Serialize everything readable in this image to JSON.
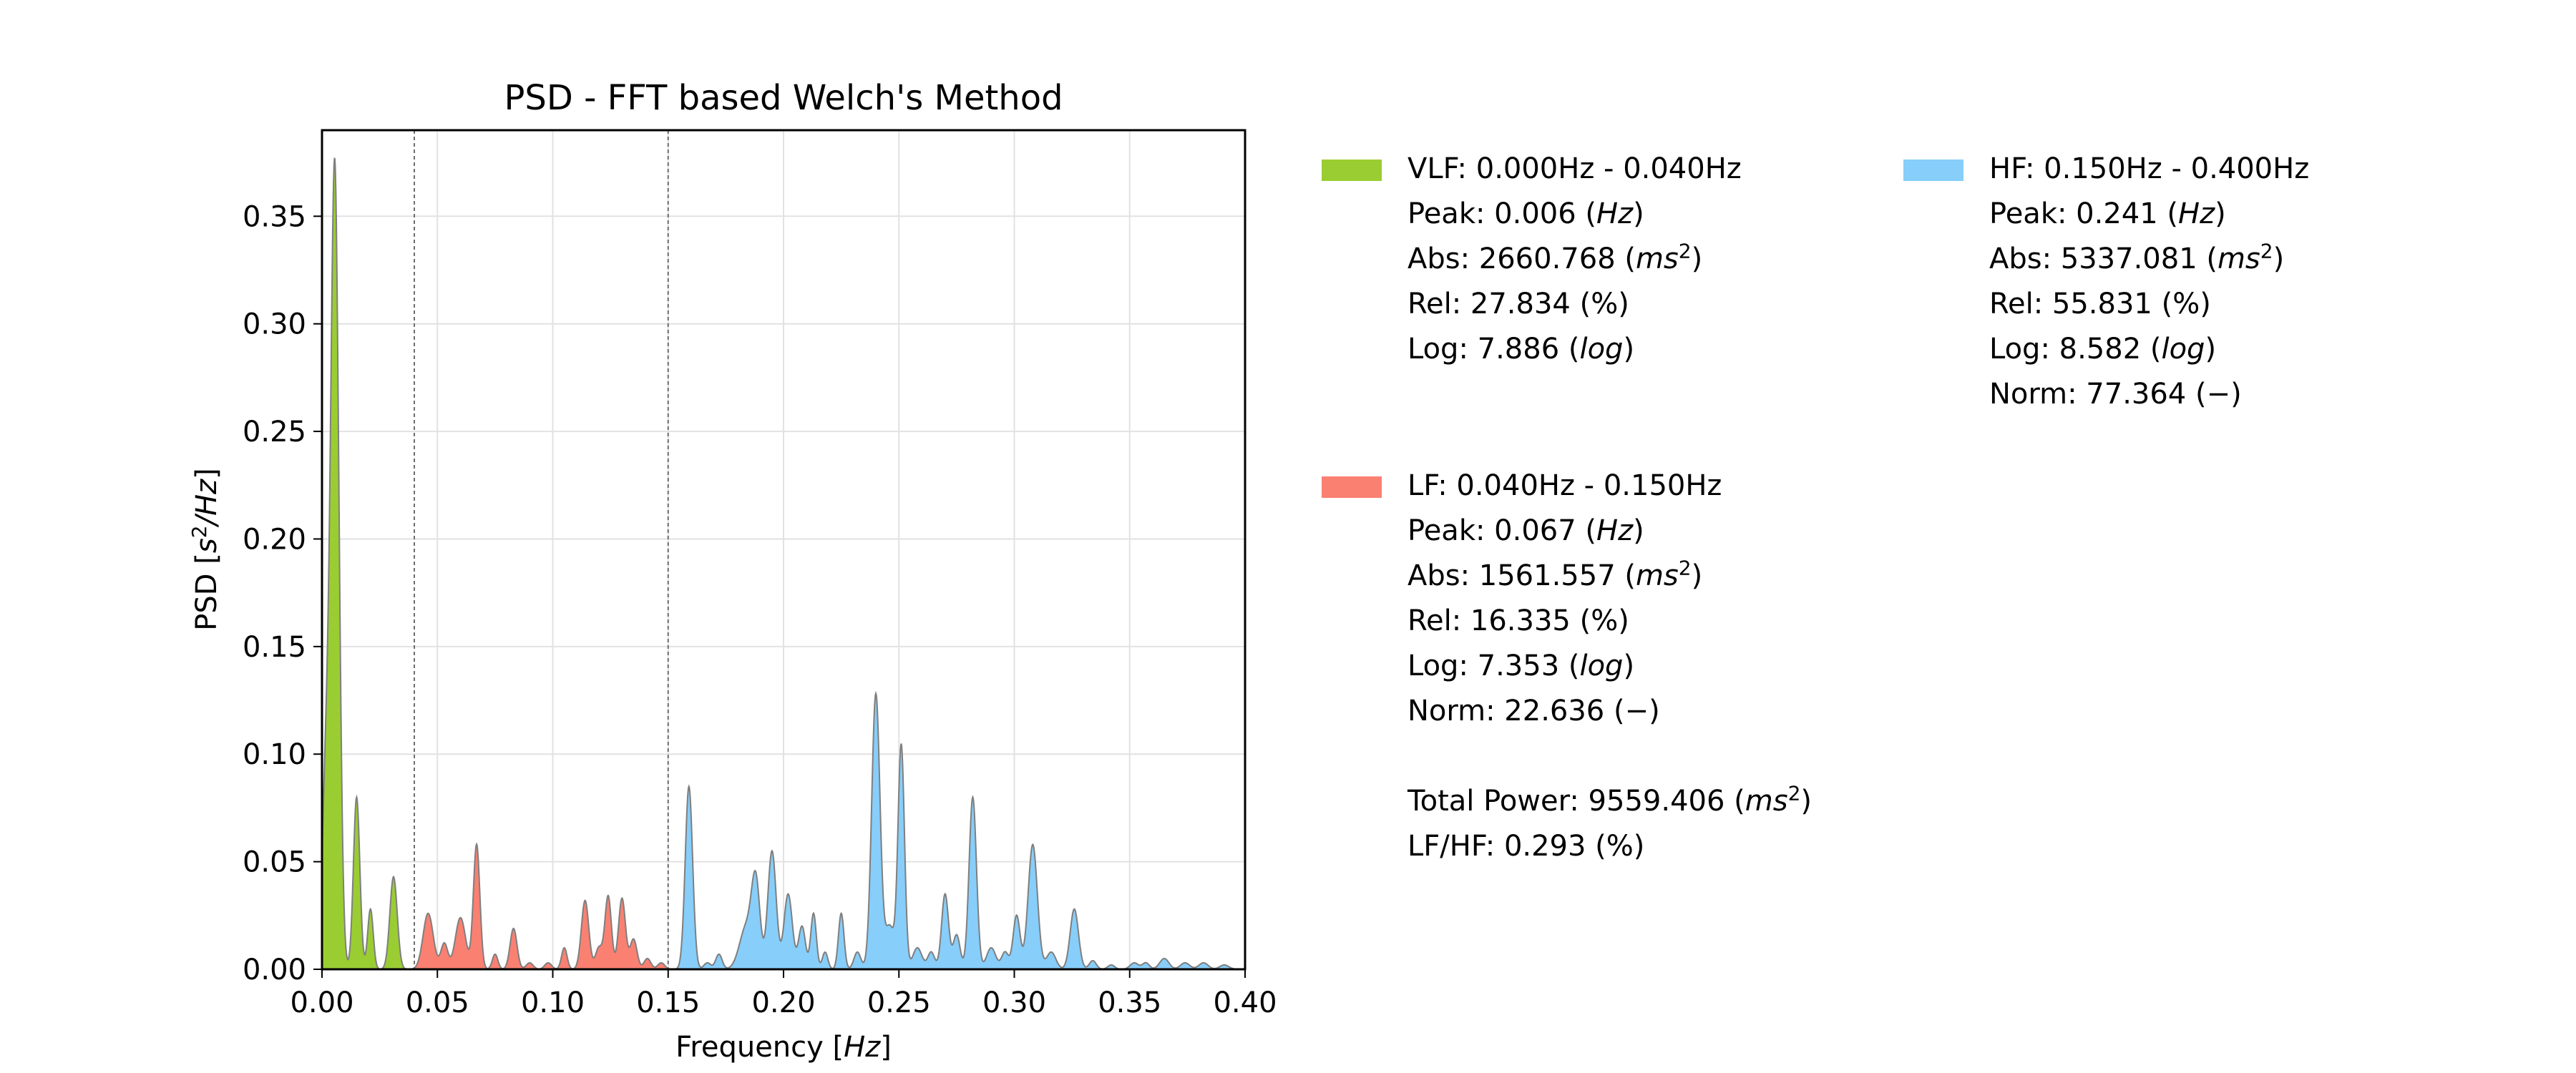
{
  "chart_data": {
    "type": "area",
    "title": "PSD - FFT based Welch's Method",
    "xlabel_text": "Frequency [",
    "xlabel_unit": "Hz",
    "xlabel_end": "]",
    "ylabel_text": "PSD [",
    "ylabel_unit_base": "s",
    "ylabel_unit_sup": "2",
    "ylabel_unit_rest": "/Hz",
    "ylabel_end": "]",
    "xlim": [
      0,
      0.4
    ],
    "ylim": [
      0,
      0.39
    ],
    "xticks": [
      0.0,
      0.05,
      0.1,
      0.15,
      0.2,
      0.25,
      0.3,
      0.35,
      0.4
    ],
    "xtick_labels": [
      "0.00",
      "0.05",
      "0.10",
      "0.15",
      "0.20",
      "0.25",
      "0.30",
      "0.35",
      "0.40"
    ],
    "yticks": [
      0.0,
      0.05,
      0.1,
      0.15,
      0.2,
      0.25,
      0.3,
      0.35
    ],
    "ytick_labels": [
      "0.00",
      "0.05",
      "0.10",
      "0.15",
      "0.20",
      "0.25",
      "0.30",
      "0.35"
    ],
    "grid": true,
    "band_boundaries": [
      0.04,
      0.15
    ],
    "bands": [
      {
        "name": "VLF",
        "range": [
          0.0,
          0.04
        ],
        "color": "#9acd32"
      },
      {
        "name": "LF",
        "range": [
          0.04,
          0.15
        ],
        "color": "#fa8072"
      },
      {
        "name": "HF",
        "range": [
          0.15,
          0.4
        ],
        "color": "#87cefa"
      }
    ],
    "peaks": [
      [
        0.0055,
        0.375,
        0.0018
      ],
      [
        0.0015,
        0.08,
        0.0015
      ],
      [
        0.015,
        0.08,
        0.0014
      ],
      [
        0.021,
        0.028,
        0.0012
      ],
      [
        0.031,
        0.043,
        0.0016
      ],
      [
        0.046,
        0.026,
        0.0022
      ],
      [
        0.053,
        0.012,
        0.0015
      ],
      [
        0.06,
        0.024,
        0.0022
      ],
      [
        0.067,
        0.058,
        0.0014
      ],
      [
        0.075,
        0.007,
        0.0012
      ],
      [
        0.083,
        0.019,
        0.0015
      ],
      [
        0.09,
        0.003,
        0.0015
      ],
      [
        0.098,
        0.003,
        0.0015
      ],
      [
        0.105,
        0.01,
        0.0012
      ],
      [
        0.114,
        0.032,
        0.0016
      ],
      [
        0.12,
        0.01,
        0.0015
      ],
      [
        0.124,
        0.034,
        0.0014
      ],
      [
        0.13,
        0.033,
        0.0015
      ],
      [
        0.135,
        0.014,
        0.0015
      ],
      [
        0.141,
        0.005,
        0.0015
      ],
      [
        0.147,
        0.003,
        0.0015
      ],
      [
        0.159,
        0.085,
        0.0016
      ],
      [
        0.167,
        0.003,
        0.0015
      ],
      [
        0.172,
        0.007,
        0.0014
      ],
      [
        0.184,
        0.02,
        0.003
      ],
      [
        0.188,
        0.037,
        0.0018
      ],
      [
        0.195,
        0.055,
        0.0018
      ],
      [
        0.202,
        0.035,
        0.0018
      ],
      [
        0.208,
        0.02,
        0.0015
      ],
      [
        0.213,
        0.026,
        0.0012
      ],
      [
        0.218,
        0.008,
        0.0012
      ],
      [
        0.225,
        0.026,
        0.0012
      ],
      [
        0.232,
        0.008,
        0.0015
      ],
      [
        0.24,
        0.128,
        0.0018
      ],
      [
        0.246,
        0.02,
        0.002
      ],
      [
        0.251,
        0.104,
        0.0014
      ],
      [
        0.258,
        0.01,
        0.002
      ],
      [
        0.264,
        0.008,
        0.0015
      ],
      [
        0.27,
        0.035,
        0.0015
      ],
      [
        0.275,
        0.016,
        0.0015
      ],
      [
        0.282,
        0.08,
        0.0016
      ],
      [
        0.29,
        0.01,
        0.002
      ],
      [
        0.296,
        0.008,
        0.0015
      ],
      [
        0.301,
        0.025,
        0.0015
      ],
      [
        0.308,
        0.058,
        0.002
      ],
      [
        0.316,
        0.008,
        0.002
      ],
      [
        0.326,
        0.028,
        0.0018
      ],
      [
        0.334,
        0.004,
        0.0015
      ],
      [
        0.342,
        0.002,
        0.0015
      ],
      [
        0.352,
        0.003,
        0.0018
      ],
      [
        0.357,
        0.003,
        0.0015
      ],
      [
        0.365,
        0.005,
        0.002
      ],
      [
        0.374,
        0.003,
        0.002
      ],
      [
        0.382,
        0.003,
        0.002
      ],
      [
        0.391,
        0.002,
        0.002
      ]
    ],
    "series_description_values": {
      "VLF_peak_hz": 0.006,
      "LF_peak_hz": 0.067,
      "HF_peak_hz": 0.241
    }
  },
  "legend": {
    "vlf": {
      "header": "VLF: 0.000Hz - 0.040Hz",
      "peak": "Peak: 0.006 (",
      "peak_unit": "Hz",
      "peak_end": ")",
      "abs": "Abs:  2660.768 (",
      "abs_unit": "ms",
      "abs_sup": "2",
      "abs_end": ")",
      "rel": "Rel:  27.834 (%)",
      "log": "Log:  7.886 (",
      "log_unit": "log",
      "log_end": ")"
    },
    "lf": {
      "header": "LF: 0.040Hz - 0.150Hz",
      "peak": "Peak: 0.067 (",
      "peak_unit": "Hz",
      "peak_end": ")",
      "abs": "Abs:  1561.557 (",
      "abs_unit": "ms",
      "abs_sup": "2",
      "abs_end": ")",
      "rel": "Rel:  16.335 (%)",
      "log": "Log:  7.353 (",
      "log_unit": "log",
      "log_end": ")",
      "norm": "Norm: 22.636 (−)"
    },
    "hf": {
      "header": "HF: 0.150Hz - 0.400Hz",
      "peak": "Peak: 0.241 (",
      "peak_unit": "Hz",
      "peak_end": ")",
      "abs": "Abs:  5337.081 (",
      "abs_unit": "ms",
      "abs_sup": "2",
      "abs_end": ")",
      "rel": "Rel:  55.831 (%)",
      "log": "Log:  8.582 (",
      "log_unit": "log",
      "log_end": ")",
      "norm": "Norm: 77.364 (−)"
    },
    "total": {
      "power": "Total Power: 9559.406 (",
      "power_unit": "ms",
      "power_sup": "2",
      "power_end": ")",
      "ratio": "LF/HF: 0.293 (%)"
    }
  }
}
